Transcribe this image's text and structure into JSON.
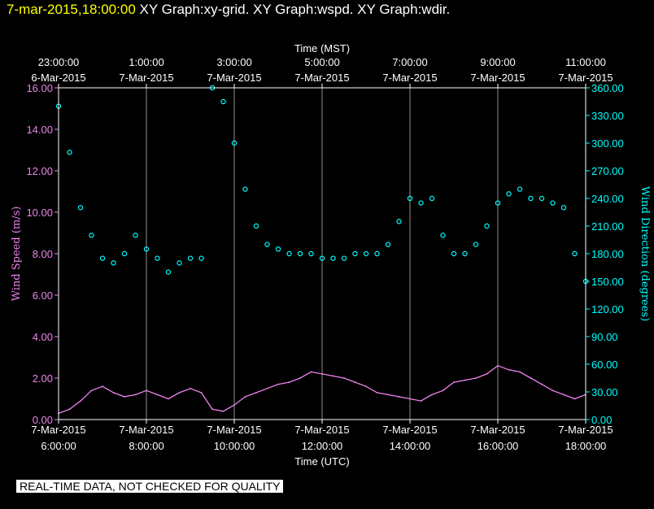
{
  "header": {
    "date": "7-mar-2015,18:00:00",
    "rest": " XY Graph:xy-grid.  XY Graph:wspd.  XY Graph:wdir."
  },
  "footer": {
    "notice": "REAL-TIME DATA, NOT CHECKED FOR QUALITY"
  },
  "colors": {
    "wspd": "#ee82ee",
    "wdir": "#00ffff",
    "grid": "#ffffff",
    "header_date": "#ffff00"
  },
  "chart_data": {
    "type": "line",
    "top_axis": {
      "label": "Time (MST)",
      "ticks": [
        {
          "time": "23:00:00",
          "date": "6-Mar-2015",
          "h": 6
        },
        {
          "time": "1:00:00",
          "date": "7-Mar-2015",
          "h": 8
        },
        {
          "time": "3:00:00",
          "date": "7-Mar-2015",
          "h": 10
        },
        {
          "time": "5:00:00",
          "date": "7-Mar-2015",
          "h": 12
        },
        {
          "time": "7:00:00",
          "date": "7-Mar-2015",
          "h": 14
        },
        {
          "time": "9:00:00",
          "date": "7-Mar-2015",
          "h": 16
        },
        {
          "time": "11:00:00",
          "date": "7-Mar-2015",
          "h": 18
        }
      ]
    },
    "bottom_axis": {
      "label": "Time (UTC)",
      "range": [
        6,
        18
      ],
      "ticks": [
        {
          "date": "7-Mar-2015",
          "time": "6:00:00",
          "h": 6
        },
        {
          "date": "7-Mar-2015",
          "time": "8:00:00",
          "h": 8
        },
        {
          "date": "7-Mar-2015",
          "time": "10:00:00",
          "h": 10
        },
        {
          "date": "7-Mar-2015",
          "time": "12:00:00",
          "h": 12
        },
        {
          "date": "7-Mar-2015",
          "time": "14:00:00",
          "h": 14
        },
        {
          "date": "7-Mar-2015",
          "time": "16:00:00",
          "h": 16
        },
        {
          "date": "7-Mar-2015",
          "time": "18:00:00",
          "h": 18
        }
      ]
    },
    "left_axis": {
      "label": "Wind Speed (m/s)",
      "range": [
        0,
        16
      ],
      "ticks": [
        "0.00",
        "2.00",
        "4.00",
        "6.00",
        "8.00",
        "10.00",
        "12.00",
        "14.00",
        "16.00"
      ]
    },
    "right_axis": {
      "label": "Wind Direction (degrees)",
      "range": [
        0,
        360
      ],
      "ticks": [
        "0.00",
        "30.00",
        "60.00",
        "90.00",
        "120.00",
        "150.00",
        "180.00",
        "210.00",
        "240.00",
        "270.00",
        "300.00",
        "330.00",
        "360.00"
      ]
    },
    "grid": "vertical",
    "series": [
      {
        "key": "wspd",
        "style": "line",
        "axis": "left",
        "x": [
          6.0,
          6.25,
          6.5,
          6.75,
          7.0,
          7.25,
          7.5,
          7.75,
          8.0,
          8.25,
          8.5,
          8.75,
          9.0,
          9.25,
          9.5,
          9.75,
          10.0,
          10.25,
          10.5,
          10.75,
          11.0,
          11.25,
          11.5,
          11.75,
          12.0,
          12.25,
          12.5,
          12.75,
          13.0,
          13.25,
          13.5,
          13.75,
          14.0,
          14.25,
          14.5,
          14.75,
          15.0,
          15.25,
          15.5,
          15.75,
          16.0,
          16.25,
          16.5,
          16.75,
          17.0,
          17.25,
          17.5,
          17.75,
          18.0
        ],
        "y": [
          0.3,
          0.5,
          0.9,
          1.4,
          1.6,
          1.3,
          1.1,
          1.2,
          1.4,
          1.2,
          1.0,
          1.3,
          1.5,
          1.3,
          0.5,
          0.4,
          0.7,
          1.1,
          1.3,
          1.5,
          1.7,
          1.8,
          2.0,
          2.3,
          2.2,
          2.1,
          2.0,
          1.8,
          1.6,
          1.3,
          1.2,
          1.1,
          1.0,
          0.9,
          1.2,
          1.4,
          1.8,
          1.9,
          2.0,
          2.2,
          2.6,
          2.4,
          2.3,
          2.0,
          1.7,
          1.4,
          1.2,
          1.0,
          1.2
        ]
      },
      {
        "key": "wdir",
        "style": "markers",
        "axis": "right",
        "x": [
          6.0,
          6.25,
          6.5,
          6.75,
          7.0,
          7.25,
          7.5,
          7.75,
          8.0,
          8.25,
          8.5,
          8.75,
          9.0,
          9.25,
          9.5,
          9.75,
          10.0,
          10.25,
          10.5,
          10.75,
          11.0,
          11.25,
          11.5,
          11.75,
          12.0,
          12.25,
          12.5,
          12.75,
          13.0,
          13.25,
          13.5,
          13.75,
          14.0,
          14.25,
          14.5,
          14.75,
          15.0,
          15.25,
          15.5,
          15.75,
          16.0,
          16.25,
          16.5,
          16.75,
          17.0,
          17.25,
          17.5,
          17.75,
          18.0
        ],
        "y": [
          340,
          290,
          230,
          200,
          175,
          170,
          180,
          200,
          185,
          175,
          160,
          170,
          175,
          175,
          360,
          345,
          300,
          250,
          210,
          190,
          185,
          180,
          180,
          180,
          175,
          175,
          175,
          180,
          180,
          180,
          190,
          215,
          240,
          235,
          240,
          200,
          180,
          180,
          190,
          210,
          235,
          245,
          250,
          240,
          240,
          235,
          230,
          180,
          150
        ]
      }
    ]
  }
}
